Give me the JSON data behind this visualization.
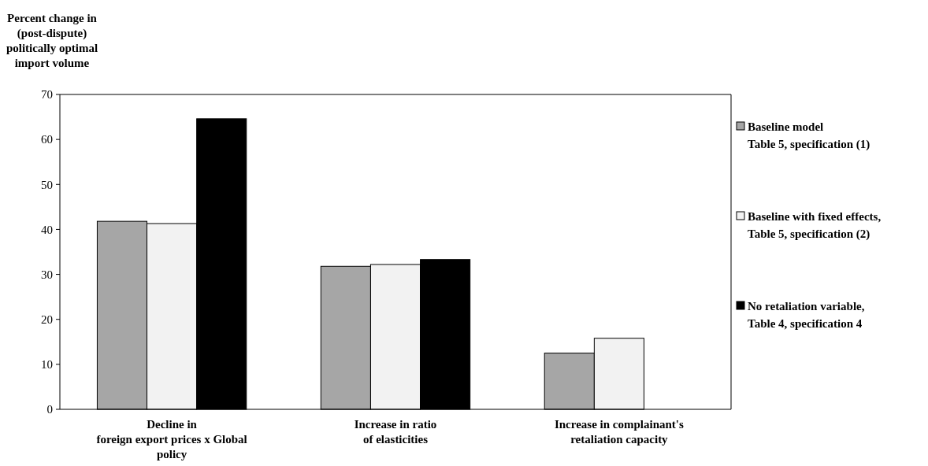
{
  "chart_data": {
    "type": "bar",
    "ylabel": "Percent change in\n(post-dispute)\npolitically optimal\nimport volume",
    "categories": [
      "Decline in\nforeign export prices x Global\npolicy",
      "Increase in ratio\nof elasticities",
      "Increase in complainant's\nretaliation capacity"
    ],
    "series": [
      {
        "name": "Baseline model\nTable 5, specification (1)",
        "color": "#a6a6a6",
        "values": [
          41.8,
          31.8,
          12.5
        ]
      },
      {
        "name": "Baseline with fixed effects,\nTable 5, specification (2)",
        "color": "#f2f2f2",
        "values": [
          41.3,
          32.2,
          15.8
        ]
      },
      {
        "name": "No retaliation variable,\nTable 4, specification 4",
        "color": "#000000",
        "values": [
          64.6,
          33.3,
          null
        ]
      }
    ],
    "ylim": [
      0,
      70
    ],
    "yticks": [
      0,
      10,
      20,
      30,
      40,
      50,
      60,
      70
    ],
    "grid": false,
    "legend": "right"
  }
}
